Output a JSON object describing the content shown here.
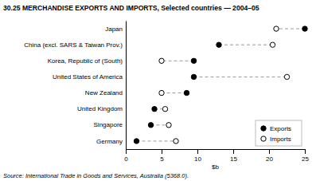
{
  "chart_data": {
    "type": "dumbbell",
    "title": "30.25  MERCHANDISE EXPORTS AND IMPORTS, Selected countries — 2004–05",
    "source": "Source: International Trade in Goods and Services, Australia (5368.0).",
    "orientation": "horizontal",
    "categories": [
      "Japan",
      "China (excl. SARS & Taiwan Prov.)",
      "Korea, Republic of (South)",
      "United States of America",
      "New Zealand",
      "United Kingdom",
      "Singapore",
      "Germany"
    ],
    "series": [
      {
        "name": "Exports",
        "color": "#000000",
        "marker": "circle",
        "values": [
          25.0,
          13.0,
          9.5,
          9.5,
          8.5,
          4.0,
          3.5,
          1.5
        ]
      },
      {
        "name": "Imports",
        "color": "#ffffff",
        "marker": "circle",
        "values": [
          21.0,
          20.5,
          5.0,
          22.5,
          5.0,
          5.5,
          6.0,
          7.0
        ]
      }
    ],
    "x_label": "$b",
    "xlim": [
      0,
      25
    ],
    "xticks": [
      0,
      5,
      10,
      15,
      20,
      25
    ],
    "grid": false,
    "legend": "lower right"
  }
}
